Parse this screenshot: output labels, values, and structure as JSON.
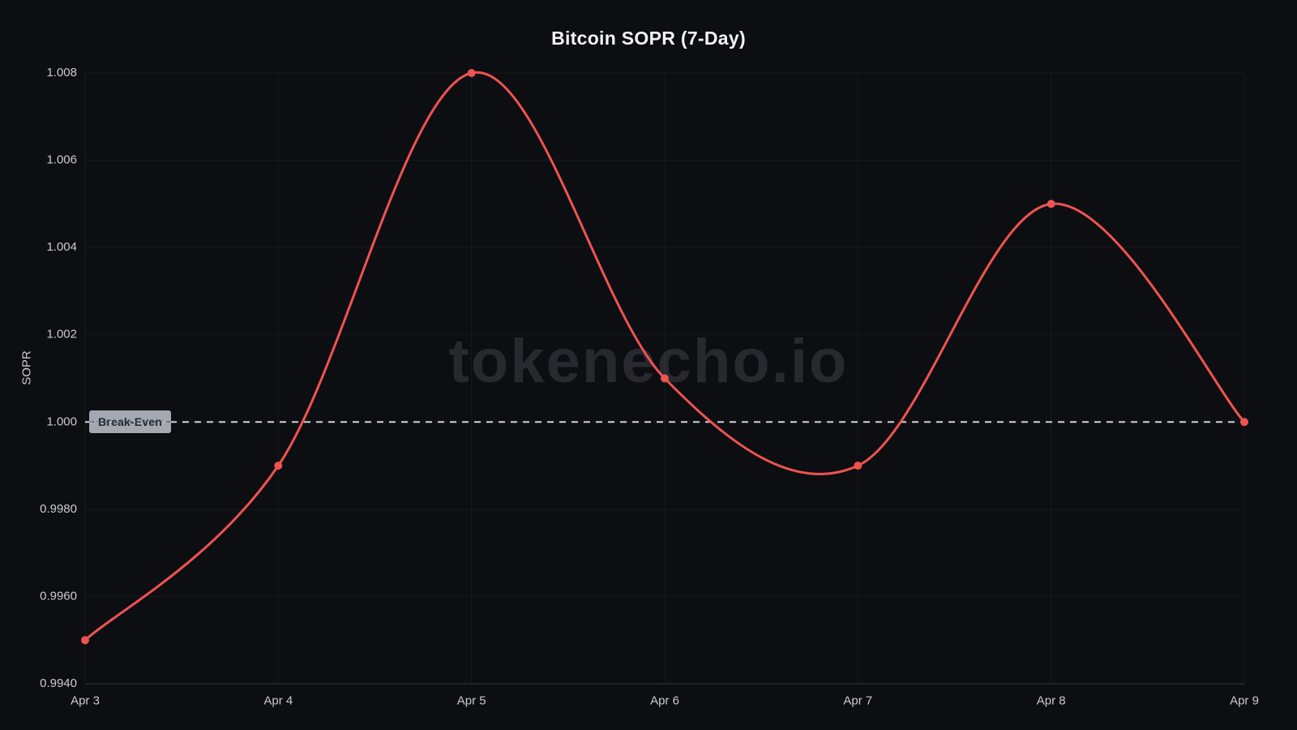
{
  "watermark": "tokenecho.io",
  "chart_data": {
    "type": "line",
    "title": "Bitcoin SOPR (7-Day)",
    "ylabel": "SOPR",
    "xlabel": "",
    "categories": [
      "Apr 3",
      "Apr 4",
      "Apr 5",
      "Apr 6",
      "Apr 7",
      "Apr 8",
      "Apr 9"
    ],
    "series": [
      {
        "name": "Bitcoin SOPR 7-Day",
        "values": [
          0.995,
          0.999,
          1.008,
          1.001,
          0.999,
          1.005,
          1.0
        ]
      }
    ],
    "ylim": [
      0.994,
      1.008
    ],
    "y_ticks": [
      0.994,
      0.996,
      0.998,
      1.0,
      1.002,
      1.004,
      1.006,
      1.008
    ],
    "y_tick_labels": [
      "0.9940",
      "0.9960",
      "0.9980",
      "1.000",
      "1.002",
      "1.004",
      "1.006",
      "1.008"
    ],
    "grid": true,
    "smooth": true,
    "legend": "none",
    "line_color": "#ef5350",
    "marker_color": "#ef5350",
    "annotation": {
      "label": "Break-Even",
      "value": 1.0,
      "line_style": "dashed",
      "line_color": "#ced3db"
    }
  },
  "theme": {
    "background": "#0d0e12",
    "title_color": "#f2f4f7",
    "tick_color": "#c7ccd4",
    "grid_color": "rgba(255,255,255,0.05)",
    "axis_color": "rgba(255,255,255,0.12)",
    "watermark_color": "rgba(197,208,224,0.14)"
  }
}
